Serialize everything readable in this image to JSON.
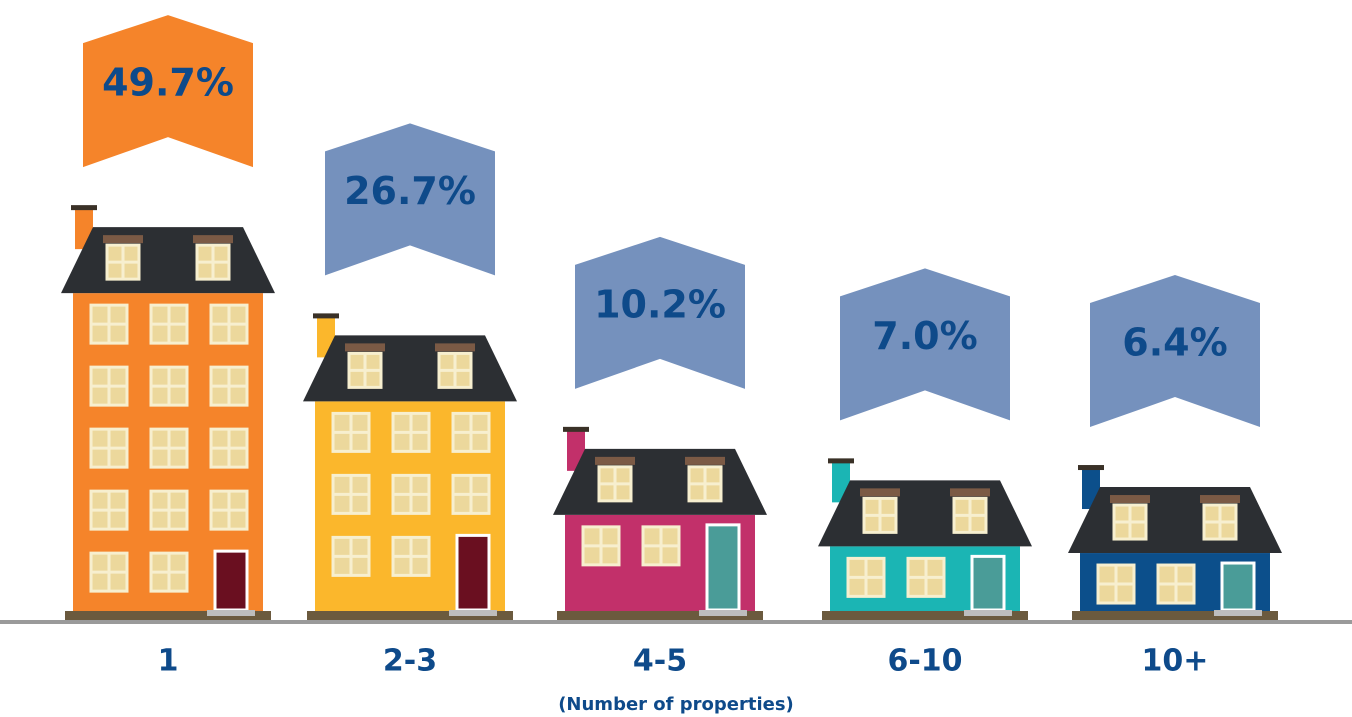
{
  "chart_data": {
    "type": "bar",
    "categories": [
      "1",
      "2-3",
      "4-5",
      "6-10",
      "10+"
    ],
    "values": [
      49.7,
      26.7,
      10.2,
      7.0,
      6.4
    ],
    "value_labels": [
      "49.7%",
      "26.7%",
      "10.2%",
      "7.0%",
      "6.4%"
    ],
    "colors": [
      "#f5842a",
      "#fbb72c",
      "#c2306a",
      "#1bb5b4",
      "#0c4f8b"
    ],
    "banner_colors": [
      "#f5842a",
      "#7591bd",
      "#7591bd",
      "#7591bd",
      "#7591bd"
    ],
    "xlabel": "(Number of properties)"
  }
}
